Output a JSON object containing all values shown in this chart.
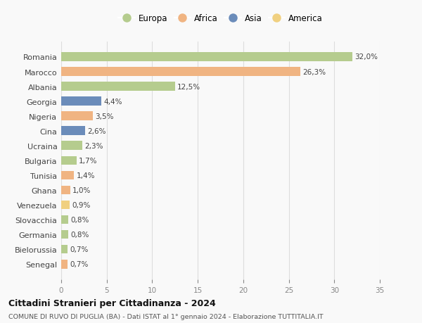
{
  "countries": [
    "Romania",
    "Marocco",
    "Albania",
    "Georgia",
    "Nigeria",
    "Cina",
    "Ucraina",
    "Bulgaria",
    "Tunisia",
    "Ghana",
    "Venezuela",
    "Slovacchia",
    "Germania",
    "Bielorussia",
    "Senegal"
  ],
  "values": [
    32.0,
    26.3,
    12.5,
    4.4,
    3.5,
    2.6,
    2.3,
    1.7,
    1.4,
    1.0,
    0.9,
    0.8,
    0.8,
    0.7,
    0.7
  ],
  "labels": [
    "32,0%",
    "26,3%",
    "12,5%",
    "4,4%",
    "3,5%",
    "2,6%",
    "2,3%",
    "1,7%",
    "1,4%",
    "1,0%",
    "0,9%",
    "0,8%",
    "0,8%",
    "0,7%",
    "0,7%"
  ],
  "continents": [
    "Europa",
    "Africa",
    "Europa",
    "Asia",
    "Africa",
    "Asia",
    "Europa",
    "Europa",
    "Africa",
    "Africa",
    "America",
    "Europa",
    "Europa",
    "Europa",
    "Africa"
  ],
  "continent_colors": {
    "Europa": "#b5cc8e",
    "Africa": "#f0b482",
    "Asia": "#6b8cba",
    "America": "#f0d080"
  },
  "legend_order": [
    "Europa",
    "Africa",
    "Asia",
    "America"
  ],
  "title": "Cittadini Stranieri per Cittadinanza - 2024",
  "subtitle": "COMUNE DI RUVO DI PUGLIA (BA) - Dati ISTAT al 1° gennaio 2024 - Elaborazione TUTTITALIA.IT",
  "xlim": [
    0,
    35
  ],
  "xticks": [
    0,
    5,
    10,
    15,
    20,
    25,
    30,
    35
  ],
  "background_color": "#f9f9f9",
  "grid_color": "#dddddd"
}
